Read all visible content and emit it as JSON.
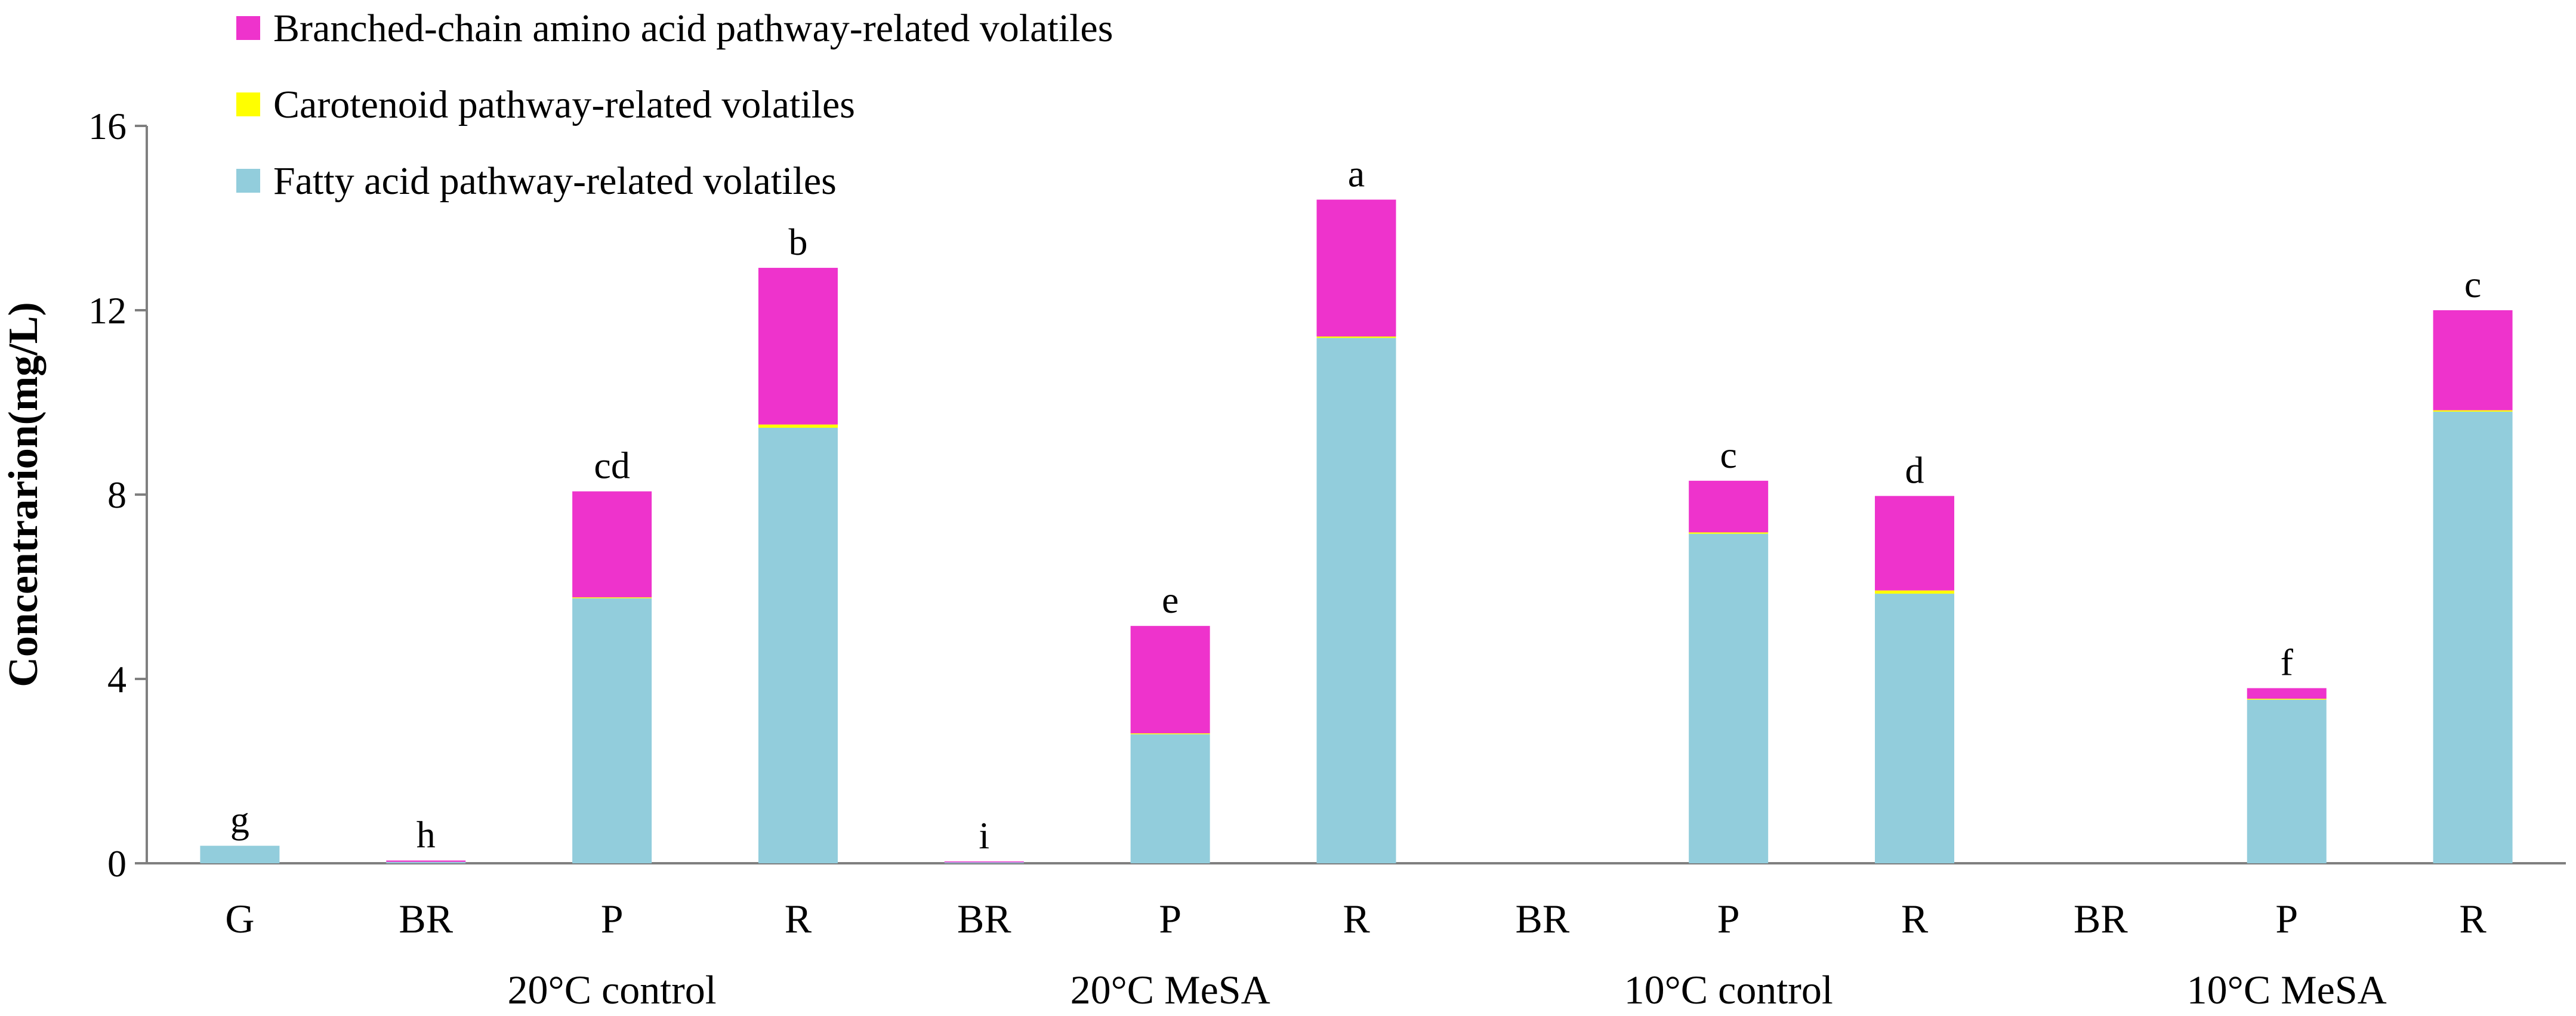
{
  "chart_data": {
    "type": "bar",
    "stacked": true,
    "title": "",
    "xlabel": "",
    "ylabel": "Concentrarion(mg/L)",
    "ylim": [
      0,
      16
    ],
    "yticks": [
      0,
      4,
      8,
      12,
      16
    ],
    "grid": false,
    "legend_position": "top-left",
    "categories": [
      "G",
      "BR",
      "P",
      "R",
      "BR",
      "P",
      "R",
      "BR",
      "P",
      "R",
      "BR",
      "P",
      "R"
    ],
    "groups": [
      {
        "label": "20°C control",
        "start": 1,
        "end": 3
      },
      {
        "label": "20°C MeSA",
        "start": 4,
        "end": 6
      },
      {
        "label": "10°C control",
        "start": 7,
        "end": 9
      },
      {
        "label": "10°C MeSA",
        "start": 10,
        "end": 12
      }
    ],
    "series": [
      {
        "name": "Fatty acid pathway-related volatiles",
        "color": "#92CDDC",
        "values": [
          0.38,
          0.03,
          5.75,
          9.45,
          0.02,
          2.8,
          11.4,
          0.0,
          7.15,
          5.85,
          0.0,
          3.55,
          9.8
        ]
      },
      {
        "name": "Carotenoid pathway-related volatiles",
        "color": "#FFFF00",
        "values": [
          0.0,
          0.0,
          0.02,
          0.07,
          0.0,
          0.02,
          0.03,
          0.0,
          0.03,
          0.07,
          0.0,
          0.02,
          0.03
        ]
      },
      {
        "name": "Branched-chain amino acid pathway-related volatiles",
        "color": "#EE33CC",
        "values": [
          0.0,
          0.03,
          2.3,
          3.4,
          0.02,
          2.33,
          2.97,
          0.0,
          1.12,
          2.05,
          0.0,
          0.23,
          2.17
        ]
      }
    ],
    "significance_labels": [
      "g",
      "h",
      "cd",
      "b",
      "i",
      "e",
      "a",
      "",
      "c",
      "d",
      "",
      "f",
      "c"
    ]
  }
}
